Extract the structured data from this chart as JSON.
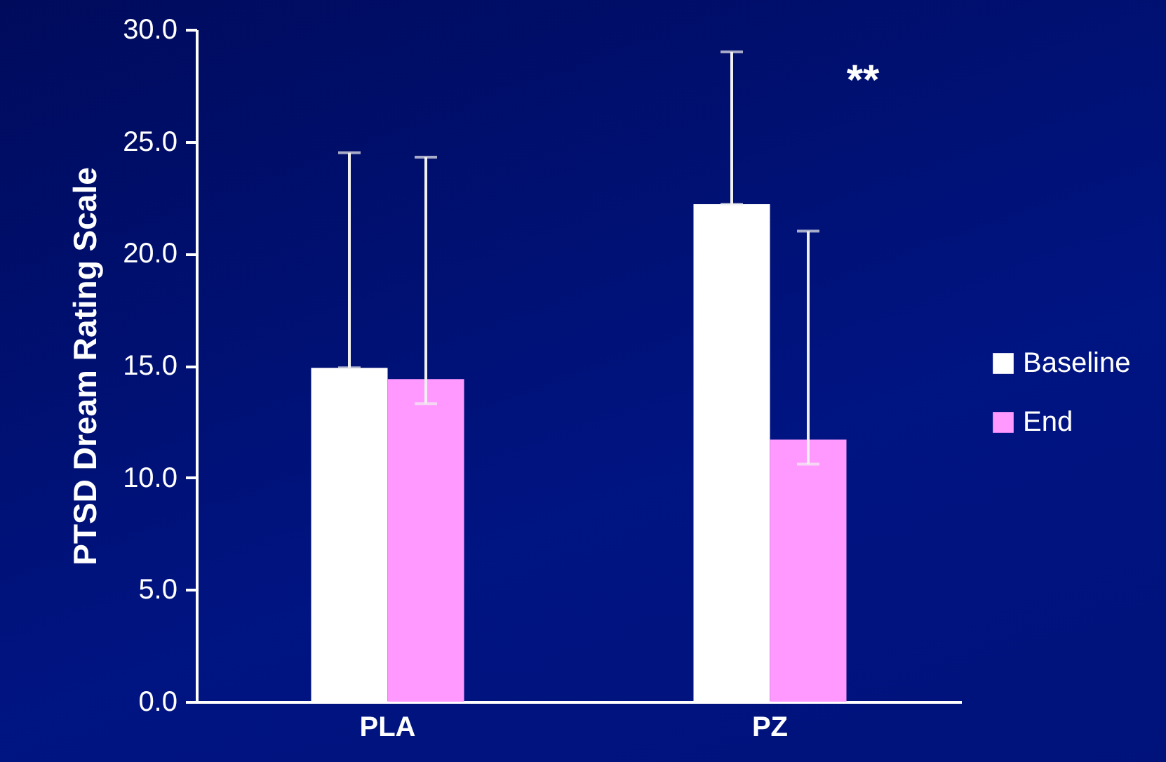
{
  "chart_data": {
    "type": "bar",
    "ylabel": "PTSD Dream Rating Scale",
    "categories": [
      "PLA",
      "PZ"
    ],
    "series": [
      {
        "name": "Baseline",
        "color": "#ffffff",
        "values": [
          14.9,
          22.2
        ],
        "errors": [
          [
            14.9,
            24.5
          ],
          [
            22.2,
            29.0
          ]
        ]
      },
      {
        "name": "End",
        "color": "#ff99ff",
        "values": [
          14.4,
          11.7
        ],
        "errors": [
          [
            13.3,
            24.3
          ],
          [
            10.6,
            21.0
          ]
        ]
      }
    ],
    "ylim": [
      0,
      30
    ],
    "yticks": [
      {
        "value": 0,
        "label": "0.0"
      },
      {
        "value": 5,
        "label": "5.0"
      },
      {
        "value": 10,
        "label": "10.0"
      },
      {
        "value": 15,
        "label": "15.0"
      },
      {
        "value": 20,
        "label": "20.0"
      },
      {
        "value": 25,
        "label": "25.0"
      },
      {
        "value": 30,
        "label": "30.0"
      }
    ],
    "grid": false,
    "legend": "right",
    "annotations": [
      "**"
    ]
  }
}
